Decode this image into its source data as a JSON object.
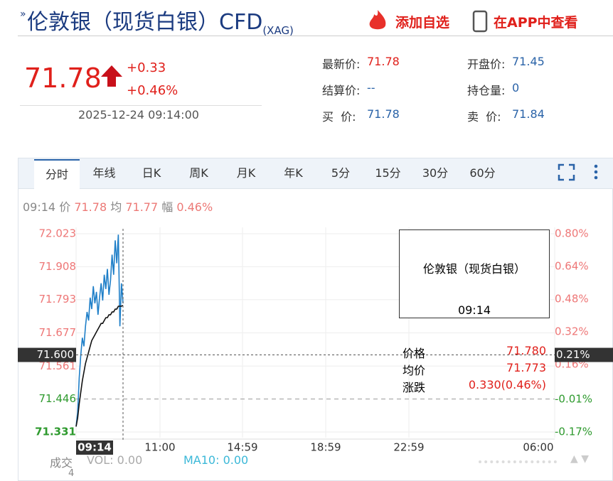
{
  "header": {
    "title": "伦敦银（现货白银）CFD",
    "code": "(XAG)",
    "add_watch": "添加自选",
    "open_app": "在APP中查看"
  },
  "quote": {
    "price": "71.78",
    "change": "+0.33",
    "change_pct": "+0.46%",
    "time": "2025-12-24 09:14:00"
  },
  "fields": [
    {
      "label": "最新价:",
      "value": "71.78"
    },
    {
      "label": "开盘价:",
      "value": "71.45"
    },
    {
      "label": "结算价:",
      "value": "--"
    },
    {
      "label": "持仓量:",
      "value": "0"
    },
    {
      "label": "买  价:",
      "value": "71.78"
    },
    {
      "label": "卖  价:",
      "value": "71.84"
    }
  ],
  "tabs": [
    "分时",
    "年线",
    "日K",
    "周K",
    "月K",
    "年K",
    "5分",
    "15分",
    "30分",
    "60分"
  ],
  "info_line": {
    "time": "09:14",
    "price_label": "价",
    "price": "71.78",
    "avg_label": "均",
    "avg": "71.77",
    "range_label": "幅",
    "range": "0.46%"
  },
  "chart": {
    "type": "line",
    "ylim": [
      71.331,
      72.023
    ],
    "yticks": [
      72.023,
      71.908,
      71.793,
      71.677,
      71.561,
      71.446,
      71.331
    ],
    "y2lim": [
      -0.17,
      0.8
    ],
    "y2ticks": [
      {
        "value": 0.8,
        "label": "0.80%"
      },
      {
        "value": 0.64,
        "label": "0.64%"
      },
      {
        "value": 0.48,
        "label": "0.48%"
      },
      {
        "value": 0.32,
        "label": "0.32%"
      },
      {
        "value": 0.16,
        "label": "0.16%"
      },
      {
        "value": -0.01,
        "label": "-0.01%"
      },
      {
        "value": -0.17,
        "label": "-0.17%"
      }
    ],
    "xticks": [
      "11:00",
      "14:59",
      "18:59",
      "22:59",
      "06:00"
    ],
    "crosshair": {
      "y": {
        "value": 71.6,
        "label": "71.600"
      },
      "y2": {
        "value": 0.21,
        "label": "0.21%"
      },
      "x_label": "09:14"
    },
    "series": [
      {
        "color": "#1f7fc8",
        "values": [
          71.35,
          71.4,
          71.52,
          71.6,
          71.66,
          71.63,
          71.7,
          71.75,
          71.72,
          71.8,
          71.76,
          71.84,
          71.78,
          71.82,
          71.74,
          71.8,
          71.85,
          71.79,
          71.88,
          71.83,
          71.9,
          71.81,
          71.86,
          71.95,
          71.88,
          72.0,
          71.92,
          72.02,
          71.7,
          71.85,
          71.78
        ]
      },
      {
        "color": "#111111",
        "values": [
          71.35,
          71.38,
          71.43,
          71.47,
          71.51,
          71.54,
          71.57,
          71.59,
          71.61,
          71.63,
          71.65,
          71.66,
          71.67,
          71.68,
          71.69,
          71.7,
          71.71,
          71.71,
          71.72,
          71.73,
          71.73,
          71.74,
          71.74,
          71.75,
          71.75,
          71.76,
          71.76,
          71.77,
          71.77,
          71.77,
          71.773
        ]
      }
    ]
  },
  "tooltip": {
    "title": "伦敦银（现货白银）",
    "time": "09:14",
    "rows": [
      [
        "价格",
        "71.780"
      ],
      [
        "均价",
        "71.773"
      ],
      [
        "涨跌",
        "0.330(0.46%)"
      ]
    ]
  },
  "volume": {
    "label": "成交",
    "vol": "VOL: 0.00",
    "ma10": "MA10: 0.00",
    "axis_label": "4"
  }
}
